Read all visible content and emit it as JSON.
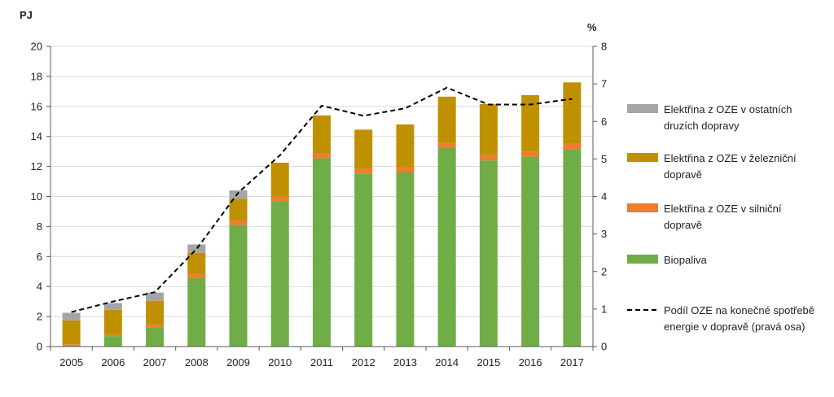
{
  "chart_data": {
    "type": "bar",
    "stacked": true,
    "title": "",
    "xlabel": "",
    "ylabel": "PJ",
    "y2label": "%",
    "ylim": [
      0,
      20
    ],
    "y2lim": [
      0,
      8
    ],
    "yticks": [
      "0",
      "2",
      "4",
      "6",
      "8",
      "10",
      "12",
      "14",
      "16",
      "18",
      "20"
    ],
    "y2ticks": [
      "0",
      "1",
      "2",
      "3",
      "4",
      "5",
      "6",
      "7",
      "8"
    ],
    "grid": true,
    "legend_position": "right",
    "categories": [
      "2005",
      "2006",
      "2007",
      "2008",
      "2009",
      "2010",
      "2011",
      "2012",
      "2013",
      "2014",
      "2015",
      "2016",
      "2017"
    ],
    "series": [
      {
        "name": "Biopaliva",
        "color": "#70ad47",
        "values": [
          0.05,
          0.7,
          1.25,
          4.55,
          8.1,
          9.65,
          12.55,
          11.5,
          11.6,
          13.25,
          12.4,
          12.65,
          13.15
        ]
      },
      {
        "name": "Elektřina z OZE v silniční dopravě",
        "color": "#ed7d31",
        "values": [
          0.1,
          0.1,
          0.2,
          0.3,
          0.3,
          0.35,
          0.35,
          0.35,
          0.35,
          0.35,
          0.35,
          0.35,
          0.35
        ]
      },
      {
        "name": "Elektřina z OZE v železniční dopravě",
        "color": "#bf9000",
        "values": [
          1.6,
          1.65,
          1.6,
          1.4,
          1.45,
          2.25,
          2.5,
          2.6,
          2.85,
          3.05,
          3.4,
          3.75,
          4.1
        ]
      },
      {
        "name": "Elektřina z OZE v ostatních druzích dopravy",
        "color": "#a5a5a5",
        "values": [
          0.5,
          0.45,
          0.55,
          0.55,
          0.55,
          0.0,
          0.0,
          0.0,
          0.0,
          0.0,
          0.0,
          0.0,
          0.0
        ]
      }
    ],
    "line_series": {
      "name": "Podíl OZE na konečné spotřebě energie v dopravě (pravá osa)",
      "axis": "right",
      "style": "dashed",
      "color": "#000000",
      "values": [
        0.92,
        1.2,
        1.45,
        2.6,
        4.1,
        5.1,
        6.42,
        6.15,
        6.35,
        6.9,
        6.45,
        6.45,
        6.6
      ]
    },
    "legend": [
      {
        "label_lines": [
          "Elektřina z OZE v ostatních",
          "druzích dopravy"
        ],
        "color": "#a5a5a5",
        "kind": "bar"
      },
      {
        "label_lines": [
          "Elektřina z OZE v železniční",
          "dopravě"
        ],
        "color": "#bf9000",
        "kind": "bar"
      },
      {
        "label_lines": [
          "Elektřina z OZE v silniční",
          "dopravě"
        ],
        "color": "#ed7d31",
        "kind": "bar"
      },
      {
        "label_lines": [
          "Biopaliva"
        ],
        "color": "#70ad47",
        "kind": "bar"
      },
      {
        "label_lines": [
          "Podíl OZE na konečné spotřebě",
          "energie v dopravě (pravá osa)"
        ],
        "color": "#000000",
        "kind": "dashed-line"
      }
    ]
  }
}
